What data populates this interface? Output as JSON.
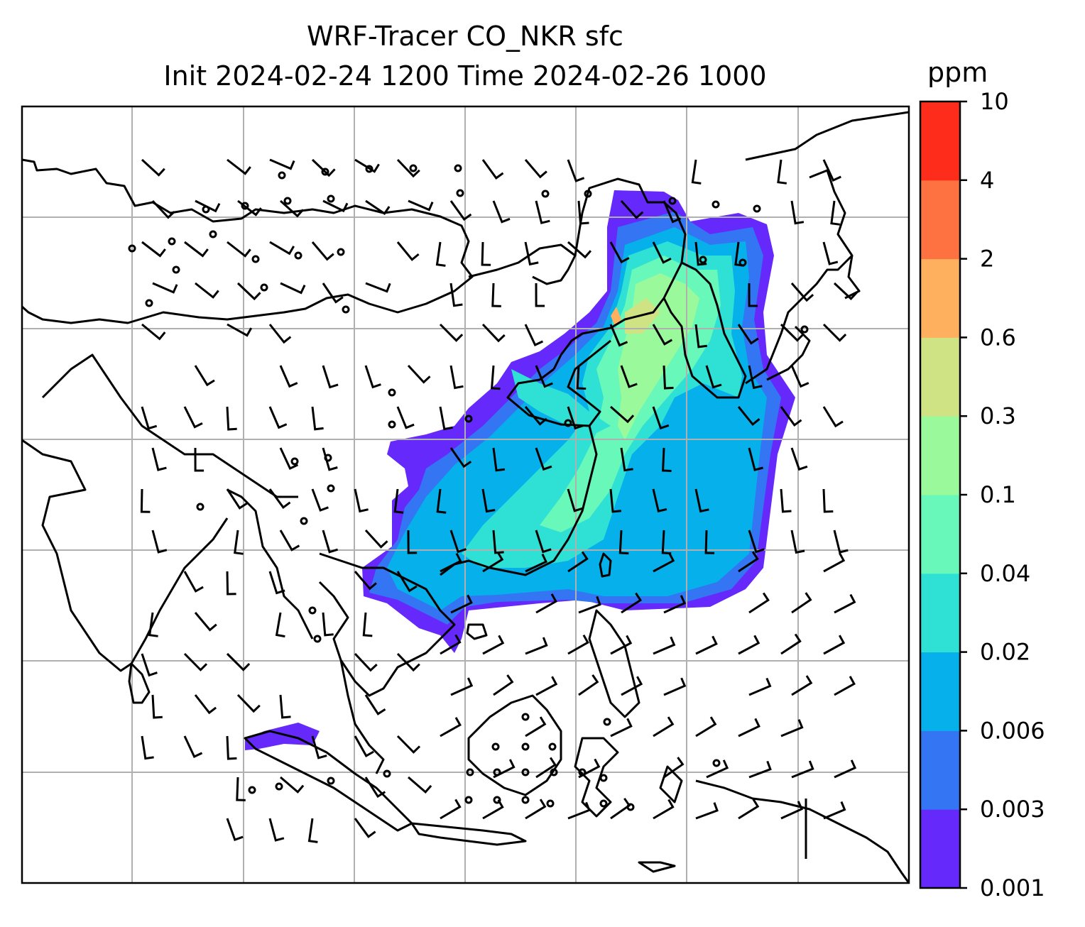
{
  "title": {
    "line1": "WRF-Tracer CO_NKR sfc",
    "line2": "Init 2024-02-24 1200 Time 2024-02-26 1000"
  },
  "colorbar": {
    "unit": "ppm",
    "levels": [
      "0.001",
      "0.003",
      "0.006",
      "0.02",
      "0.04",
      "0.1",
      "0.3",
      "0.6",
      "2",
      "4",
      "10"
    ],
    "colors": [
      "#6629fb",
      "#3375f3",
      "#06b0ea",
      "#2fe0d5",
      "#67f8ba",
      "#9afa9b",
      "#cfe385",
      "#feb05f",
      "#fe7140",
      "#fe2c1a"
    ]
  },
  "map": {
    "grid": "on",
    "background": "#ffffff",
    "coastline_color": "#000000"
  }
}
